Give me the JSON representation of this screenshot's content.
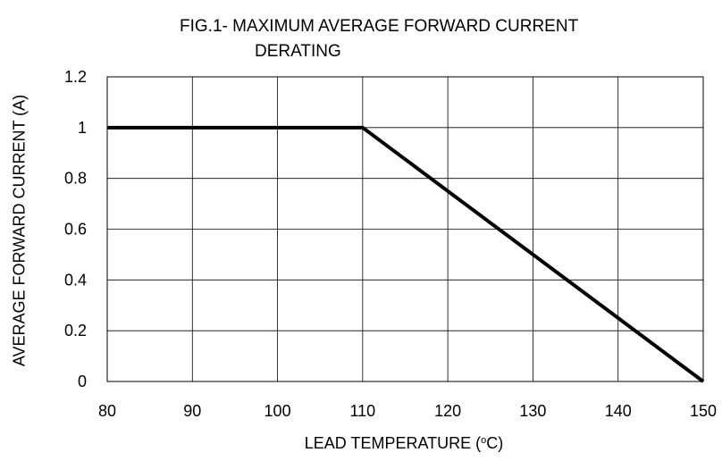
{
  "chart_data": {
    "type": "line",
    "title_line1": "FIG.1- MAXIMUM AVERAGE FORWARD CURRENT",
    "title_line2": "DERATING",
    "xlabel_prefix": "LEAD TEMPERATURE (",
    "xlabel_sup": "o",
    "xlabel_suffix": "C)",
    "ylabel": "AVERAGE FORWARD CURRENT (A)",
    "xlim": [
      80,
      150
    ],
    "ylim": [
      0,
      1.2
    ],
    "x_ticks": [
      80,
      90,
      100,
      110,
      120,
      130,
      140,
      150
    ],
    "y_ticks": [
      0,
      0.2,
      0.4,
      0.6,
      0.8,
      1,
      1.2
    ],
    "x_tick_labels": [
      "80",
      "90",
      "100",
      "110",
      "120",
      "130",
      "140",
      "150"
    ],
    "y_tick_labels": [
      "0",
      "0.2",
      "0.4",
      "0.6",
      "0.8",
      "1",
      "1.2"
    ],
    "grid": true,
    "series": [
      {
        "x": [
          80,
          110,
          150
        ],
        "y": [
          1,
          1,
          0
        ],
        "color": "#000000"
      }
    ]
  }
}
